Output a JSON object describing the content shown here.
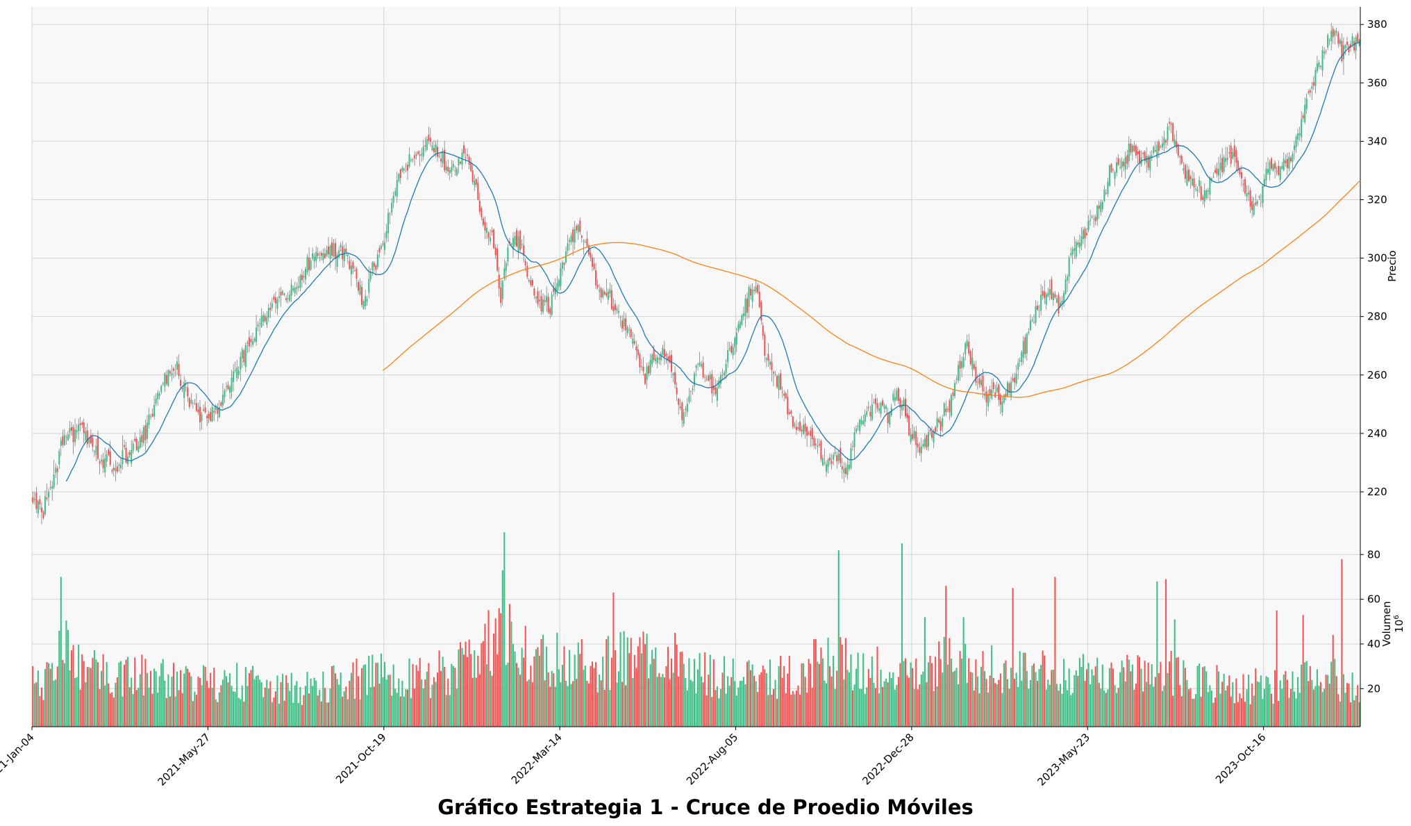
{
  "chart_data": {
    "type": "candlestick",
    "title": "Gráfico Estrategia 1 - Cruce de Proedio Móviles",
    "price_panel": {
      "ylabel": "Precio",
      "ylim": [
        210,
        386
      ],
      "yticks": [
        220,
        240,
        260,
        280,
        300,
        320,
        340,
        360,
        380
      ],
      "grid": true
    },
    "volume_panel": {
      "ylabel": "Volumen",
      "ylabel_exponent": "10",
      "ylabel_exponent_power": "6",
      "ylim": [
        3,
        95
      ],
      "yticks": [
        20,
        40,
        60,
        80
      ],
      "grid": true
    },
    "x_ticks": [
      {
        "index": 0,
        "label": "2021-Jan-04"
      },
      {
        "index": 100,
        "label": "2021-May-27"
      },
      {
        "index": 200,
        "label": "2021-Oct-19"
      },
      {
        "index": 300,
        "label": "2022-Mar-14"
      },
      {
        "index": 400,
        "label": "2022-Aug-05"
      },
      {
        "index": 500,
        "label": "2022-Dec-28"
      },
      {
        "index": 600,
        "label": "2023-May-23"
      },
      {
        "index": 700,
        "label": "2023-Oct-16"
      }
    ],
    "n_bars": 755,
    "colors": {
      "up": "#3dbf85",
      "down": "#f45353",
      "sma_short": "#1f77b4",
      "sma_long": "#ff7f0e",
      "panel_bg": "#f8f8f8",
      "grid": "#d3d3d3"
    },
    "close_anchors": [
      [
        0,
        218
      ],
      [
        5,
        214
      ],
      [
        12,
        225
      ],
      [
        18,
        238
      ],
      [
        24,
        242
      ],
      [
        30,
        240
      ],
      [
        38,
        231
      ],
      [
        46,
        229
      ],
      [
        55,
        233
      ],
      [
        62,
        238
      ],
      [
        70,
        250
      ],
      [
        75,
        258
      ],
      [
        82,
        262
      ],
      [
        88,
        252
      ],
      [
        94,
        246
      ],
      [
        100,
        245
      ],
      [
        106,
        249
      ],
      [
        112,
        258
      ],
      [
        120,
        267
      ],
      [
        128,
        277
      ],
      [
        136,
        283
      ],
      [
        144,
        288
      ],
      [
        152,
        292
      ],
      [
        160,
        300
      ],
      [
        168,
        303
      ],
      [
        176,
        302
      ],
      [
        182,
        296
      ],
      [
        188,
        285
      ],
      [
        194,
        297
      ],
      [
        200,
        307
      ],
      [
        204,
        318
      ],
      [
        210,
        330
      ],
      [
        218,
        336
      ],
      [
        226,
        341
      ],
      [
        232,
        332
      ],
      [
        238,
        330
      ],
      [
        244,
        337
      ],
      [
        250,
        329
      ],
      [
        256,
        312
      ],
      [
        262,
        305
      ],
      [
        266,
        285
      ],
      [
        270,
        305
      ],
      [
        276,
        307
      ],
      [
        282,
        293
      ],
      [
        288,
        285
      ],
      [
        294,
        284
      ],
      [
        300,
        295
      ],
      [
        306,
        307
      ],
      [
        310,
        310
      ],
      [
        316,
        302
      ],
      [
        322,
        290
      ],
      [
        330,
        285
      ],
      [
        336,
        278
      ],
      [
        342,
        270
      ],
      [
        348,
        260
      ],
      [
        352,
        265
      ],
      [
        358,
        268
      ],
      [
        364,
        260
      ],
      [
        368,
        246
      ],
      [
        372,
        252
      ],
      [
        378,
        264
      ],
      [
        382,
        259
      ],
      [
        388,
        255
      ],
      [
        394,
        265
      ],
      [
        400,
        275
      ],
      [
        404,
        283
      ],
      [
        408,
        288
      ],
      [
        412,
        290
      ],
      [
        416,
        268
      ],
      [
        420,
        262
      ],
      [
        426,
        254
      ],
      [
        432,
        243
      ],
      [
        438,
        240
      ],
      [
        444,
        238
      ],
      [
        450,
        229
      ],
      [
        456,
        234
      ],
      [
        462,
        226
      ],
      [
        468,
        242
      ],
      [
        474,
        248
      ],
      [
        480,
        250
      ],
      [
        486,
        248
      ],
      [
        490,
        254
      ],
      [
        494,
        250
      ],
      [
        500,
        238
      ],
      [
        504,
        233
      ],
      [
        510,
        238
      ],
      [
        516,
        244
      ],
      [
        522,
        252
      ],
      [
        526,
        262
      ],
      [
        530,
        270
      ],
      [
        534,
        263
      ],
      [
        538,
        257
      ],
      [
        542,
        252
      ],
      [
        546,
        257
      ],
      [
        550,
        250
      ],
      [
        556,
        256
      ],
      [
        560,
        262
      ],
      [
        566,
        276
      ],
      [
        572,
        285
      ],
      [
        578,
        289
      ],
      [
        584,
        283
      ],
      [
        590,
        301
      ],
      [
        596,
        306
      ],
      [
        602,
        313
      ],
      [
        608,
        320
      ],
      [
        612,
        328
      ],
      [
        618,
        333
      ],
      [
        624,
        337
      ],
      [
        632,
        333
      ],
      [
        638,
        338
      ],
      [
        642,
        338
      ],
      [
        646,
        348
      ],
      [
        650,
        337
      ],
      [
        654,
        332
      ],
      [
        658,
        327
      ],
      [
        664,
        322
      ],
      [
        670,
        327
      ],
      [
        676,
        332
      ],
      [
        682,
        335
      ],
      [
        688,
        325
      ],
      [
        694,
        316
      ],
      [
        698,
        322
      ],
      [
        702,
        331
      ],
      [
        708,
        330
      ],
      [
        712,
        331
      ],
      [
        716,
        338
      ],
      [
        720,
        345
      ],
      [
        724,
        355
      ],
      [
        730,
        365
      ],
      [
        736,
        375
      ],
      [
        740,
        378
      ],
      [
        744,
        370
      ],
      [
        750,
        373
      ],
      [
        754,
        375
      ]
    ],
    "vol_anchors": [
      [
        0,
        26
      ],
      [
        10,
        24
      ],
      [
        16,
        45
      ],
      [
        30,
        28
      ],
      [
        50,
        26
      ],
      [
        70,
        26
      ],
      [
        80,
        24
      ],
      [
        100,
        22
      ],
      [
        120,
        23
      ],
      [
        140,
        22
      ],
      [
        160,
        20
      ],
      [
        180,
        24
      ],
      [
        200,
        26
      ],
      [
        220,
        25
      ],
      [
        240,
        28
      ],
      [
        250,
        34
      ],
      [
        260,
        40
      ],
      [
        270,
        45
      ],
      [
        280,
        36
      ],
      [
        300,
        32
      ],
      [
        320,
        30
      ],
      [
        340,
        35
      ],
      [
        360,
        30
      ],
      [
        380,
        27
      ],
      [
        400,
        24
      ],
      [
        420,
        25
      ],
      [
        440,
        30
      ],
      [
        460,
        32
      ],
      [
        480,
        28
      ],
      [
        500,
        30
      ],
      [
        520,
        31
      ],
      [
        540,
        28
      ],
      [
        560,
        29
      ],
      [
        580,
        27
      ],
      [
        600,
        27
      ],
      [
        620,
        25
      ],
      [
        640,
        28
      ],
      [
        660,
        24
      ],
      [
        680,
        21
      ],
      [
        700,
        21
      ],
      [
        720,
        25
      ],
      [
        740,
        24
      ],
      [
        754,
        18
      ]
    ],
    "vol_spikes": [
      [
        16,
        70
      ],
      [
        268,
        90
      ],
      [
        267,
        73
      ],
      [
        265,
        56
      ],
      [
        330,
        63
      ],
      [
        345,
        43
      ],
      [
        365,
        45
      ],
      [
        458,
        82
      ],
      [
        494,
        85
      ],
      [
        507,
        52
      ],
      [
        519,
        66
      ],
      [
        529,
        52
      ],
      [
        557,
        65
      ],
      [
        581,
        70
      ],
      [
        639,
        68
      ],
      [
        644,
        69
      ],
      [
        649,
        51
      ],
      [
        707,
        55
      ],
      [
        722,
        53
      ],
      [
        744,
        78
      ],
      [
        739,
        44
      ]
    ],
    "sma_short_window": 20,
    "sma_long_window": 200,
    "seed": 7
  }
}
